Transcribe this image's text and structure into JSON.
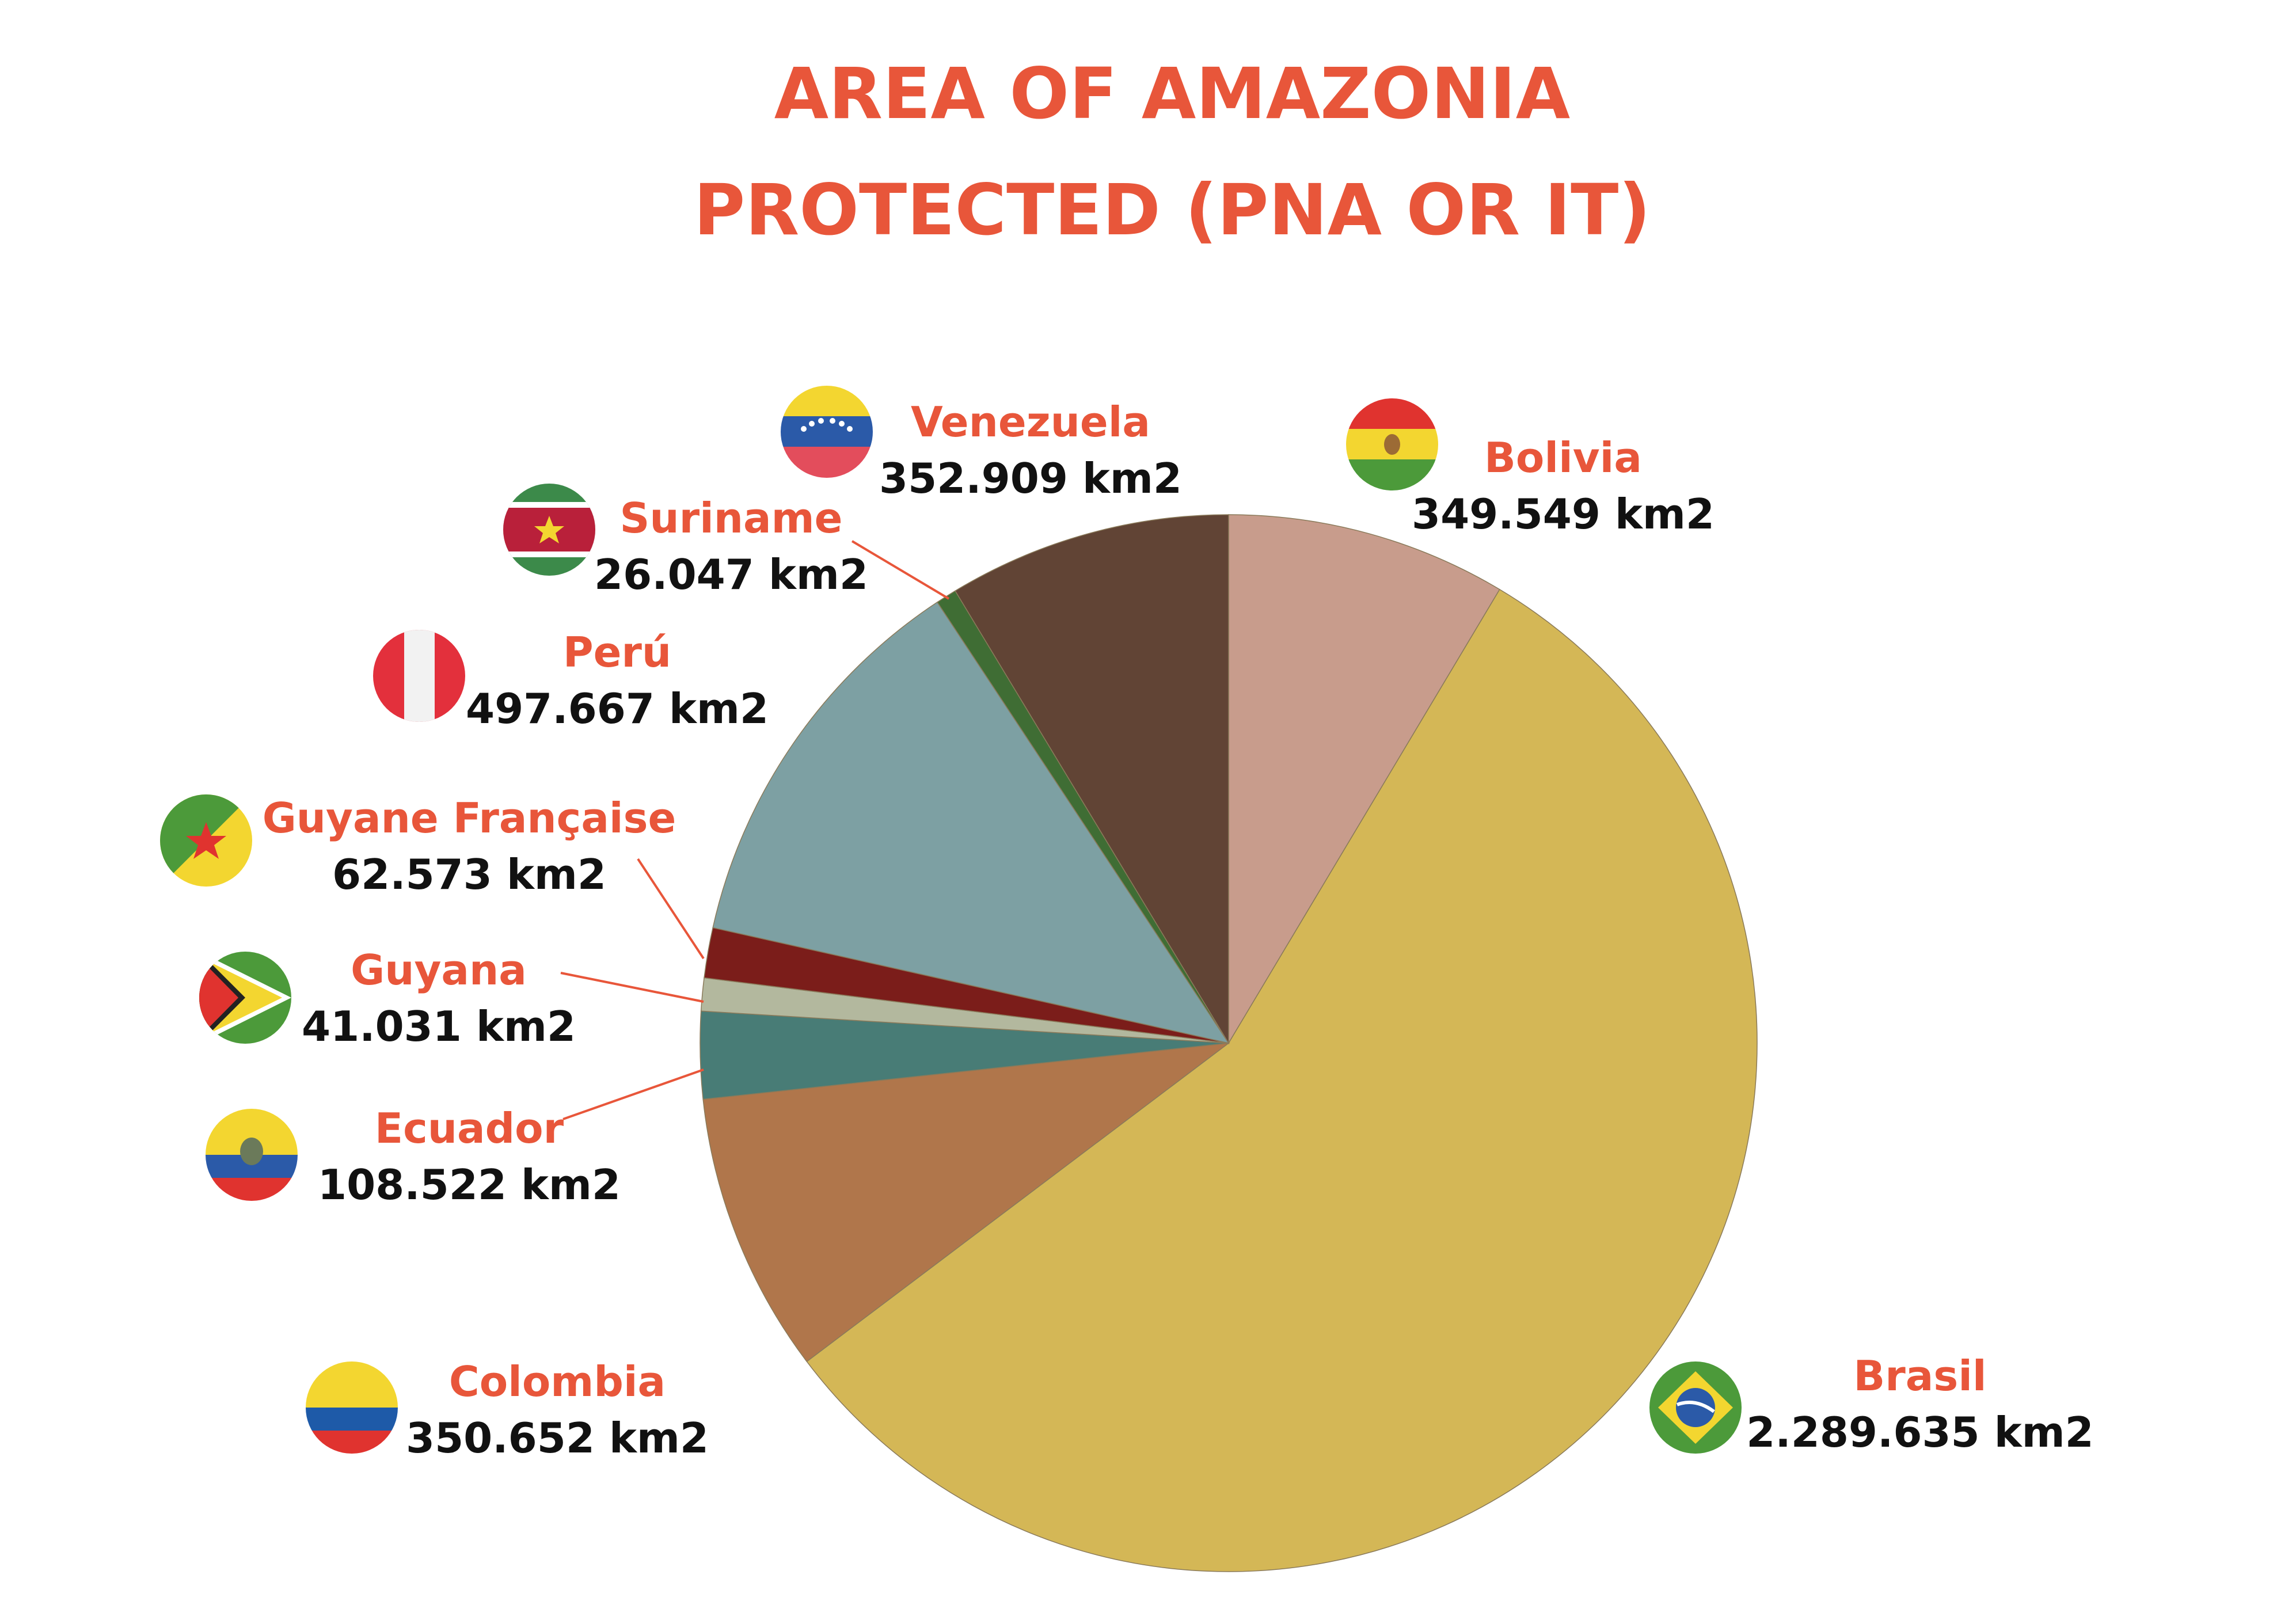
{
  "chart_data": {
    "type": "pie",
    "title_lines": [
      "AREA OF AMAZONIA",
      "PROTECTED (PNA OR IT)"
    ],
    "unit": "km2",
    "slices": [
      {
        "name": "Bolivia",
        "value": 349549,
        "label": "349.549 km2",
        "color": "#c89c8c",
        "flag": "bolivia-flag"
      },
      {
        "name": "Brasil",
        "value": 2289635,
        "label": "2.289.635 km2",
        "color": "#d4b756",
        "flag": "brazil-flag"
      },
      {
        "name": "Colombia",
        "value": 350652,
        "label": "350.652 km2",
        "color": "#b0764b",
        "flag": "colombia-flag"
      },
      {
        "name": "Ecuador",
        "value": 108522,
        "label": "108.522 km2",
        "color": "#487c76",
        "flag": "ecuador-flag"
      },
      {
        "name": "Guyana",
        "value": 41031,
        "label": "41.031 km2",
        "color": "#b3b89e",
        "flag": "guyana-flag"
      },
      {
        "name": "Guyane Française",
        "value": 62573,
        "label": "62.573 km2",
        "color": "#7b1d1a",
        "flag": "french-guiana-flag"
      },
      {
        "name": "Perú",
        "value": 497667,
        "label": "497.667 km2",
        "color": "#7da0a3",
        "flag": "peru-flag"
      },
      {
        "name": "Suriname",
        "value": 26047,
        "label": "26.047 km2",
        "color": "#3f6d34",
        "flag": "suriname-flag"
      },
      {
        "name": "Venezuela",
        "value": 352909,
        "label": "352.909 km2",
        "color": "#614435",
        "flag": "venezuela-flag"
      }
    ],
    "start_angle": "12 o'clock",
    "direction": "clockwise"
  },
  "colors": {
    "title": "#e8563a",
    "country_name": "#e8563a",
    "value_text": "#111111",
    "leader_line": "#e8563a"
  }
}
